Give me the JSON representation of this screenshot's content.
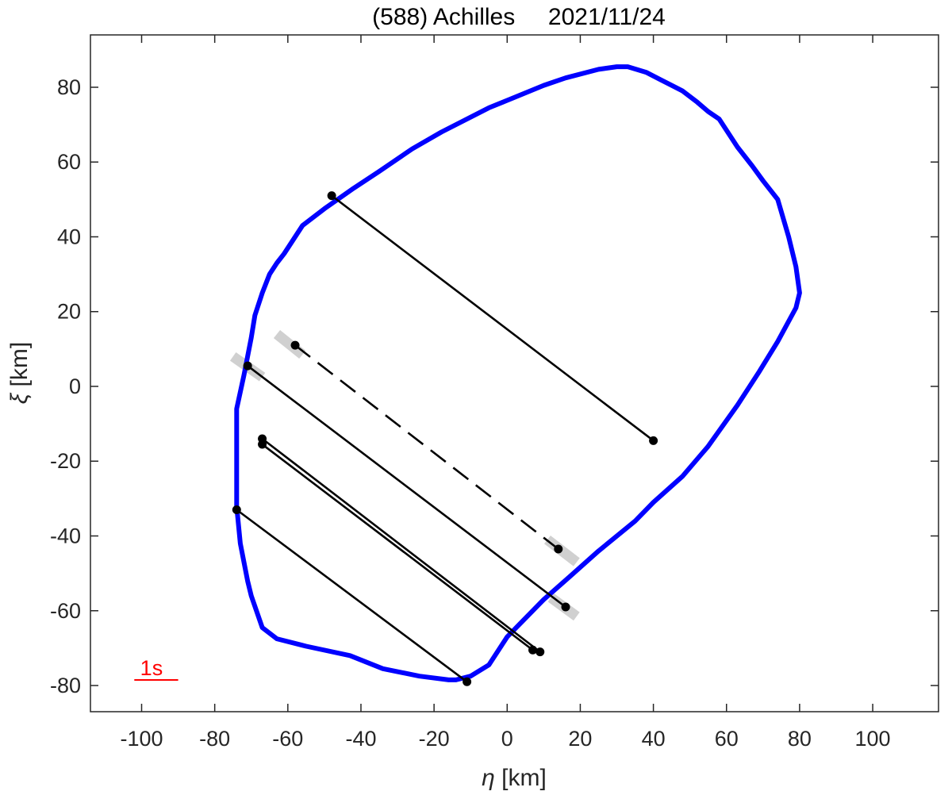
{
  "chart_data": {
    "type": "line",
    "title": "(588) Achilles     2021/11/24",
    "xlabel_symbol": "η",
    "xlabel_unit": " [km]",
    "ylabel_symbol": "ξ",
    "ylabel_unit": " [km]",
    "xlim": [
      -114,
      118
    ],
    "ylim": [
      -87,
      94
    ],
    "xticks": [
      -100,
      -80,
      -60,
      -40,
      -20,
      0,
      20,
      40,
      60,
      80,
      100
    ],
    "yticks": [
      -80,
      -60,
      -40,
      -20,
      0,
      20,
      40,
      60,
      80
    ],
    "grid": false,
    "colors": {
      "profile": "#0000ff",
      "chord": "#000000",
      "uncertainty": "#d0d0d0",
      "scale_bar": "#ff0000"
    },
    "profile": {
      "x": [
        33,
        38,
        42,
        45,
        48,
        52,
        55,
        58,
        63,
        67,
        70,
        74,
        77,
        79,
        80,
        79,
        74,
        69,
        63,
        55,
        48,
        40,
        35,
        25,
        17,
        10,
        4,
        0,
        -5,
        -10,
        -14,
        -16,
        -24,
        -34,
        -43,
        -55,
        -63,
        -67,
        -70,
        -71,
        -73,
        -74,
        -74,
        -72,
        -70,
        -69,
        -67,
        -65,
        -63,
        -61,
        -56,
        -50,
        -42,
        -35,
        -26,
        -18,
        -5,
        0,
        10,
        16,
        25,
        30
      ],
      "y": [
        85.5,
        84,
        82,
        80.5,
        79,
        76,
        73.5,
        71.5,
        64,
        59,
        55,
        50,
        40,
        32,
        25,
        21,
        12,
        4,
        -5,
        -16,
        -24,
        -31,
        -36,
        -44,
        -51,
        -57,
        -63,
        -67,
        -74.5,
        -77.5,
        -78.5,
        -78.5,
        -77.5,
        -75.5,
        -72,
        -69.5,
        -67.5,
        -64.5,
        -56,
        -52,
        -42,
        -32,
        -6,
        3,
        13,
        19,
        25,
        30,
        33,
        35.5,
        43,
        47.5,
        53,
        57.5,
        63.5,
        68,
        74.5,
        76.5,
        80.5,
        82.5,
        84.8,
        85.5
      ]
    },
    "chords": [
      {
        "x1": -48,
        "y1": 51,
        "x2": 40,
        "y2": -14.5,
        "style": "solid"
      },
      {
        "x1": -58,
        "y1": 11,
        "x2": 14,
        "y2": -43.5,
        "style": "dashed",
        "uncertainty_bands": [
          {
            "x1": -63,
            "y1": 14,
            "x2": -56,
            "y2": 8.5
          },
          {
            "x1": 11,
            "y1": -41,
            "x2": 19,
            "y2": -47
          }
        ]
      },
      {
        "x1": -71,
        "y1": 5.5,
        "x2": 16,
        "y2": -59,
        "style": "solid",
        "uncertainty_bands": [
          {
            "x1": -75,
            "y1": 8,
            "x2": -67,
            "y2": 2.5
          },
          {
            "x1": 12,
            "y1": -56.5,
            "x2": 19,
            "y2": -61.5
          }
        ]
      },
      {
        "x1": -67,
        "y1": -14,
        "x2": 9,
        "y2": -71,
        "style": "solid"
      },
      {
        "x1": -67,
        "y1": -15.5,
        "x2": 7,
        "y2": -70.5,
        "style": "solid"
      },
      {
        "x1": -74,
        "y1": -33,
        "x2": -11,
        "y2": -79,
        "style": "solid"
      }
    ],
    "scale_bar": {
      "label": "1s",
      "x_start": -102,
      "x_end": -90,
      "y": -78.5
    }
  }
}
